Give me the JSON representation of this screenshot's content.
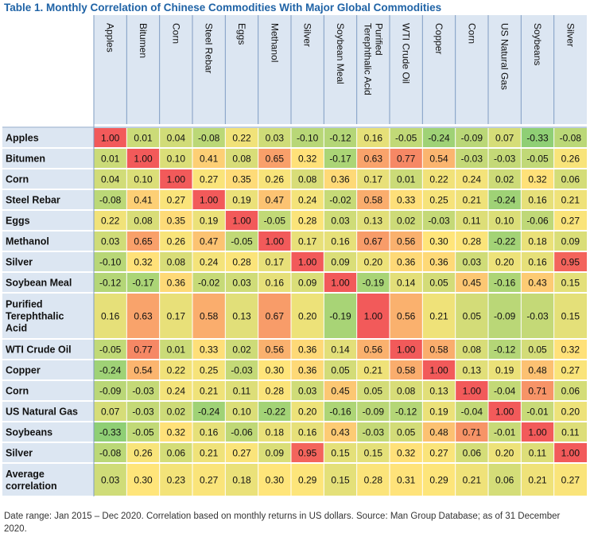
{
  "title": "Table 1. Monthly Correlation of Chinese Commodities With Major Global Commodities",
  "footnote": "Date range: Jan 2015 – Dec 2020. Correlation based on monthly returns in US dollars. Source: Man Group Database; as of 31 December 2020.",
  "colors": {
    "header_fill": "#dce6f2",
    "header_border": "#7f9cc3",
    "scale_low": "#8fcf75",
    "scale_mid": "#ffe57a",
    "scale_high": "#f25a5a"
  },
  "chart_data": {
    "type": "heatmap",
    "columns": [
      "Apples",
      "Bitumen",
      "Corn",
      "Steel Rebar",
      "Eggs",
      "Methanol",
      "Silver",
      "Soybean Meal",
      "Purified Terephthalic Acid",
      "WTI Crude Oil",
      "Copper",
      "Corn",
      "US Natural Gas",
      "Soybeans",
      "Silver"
    ],
    "rows": [
      "Apples",
      "Bitumen",
      "Corn",
      "Steel Rebar",
      "Eggs",
      "Methanol",
      "Silver",
      "Soybean Meal",
      "Purified Terephthalic Acid",
      "WTI Crude Oil",
      "Copper",
      "Corn",
      "US Natural Gas",
      "Soybeans",
      "Silver",
      "Average correlation"
    ],
    "values": [
      [
        "1.00",
        "0.01",
        "0.04",
        "-0.08",
        "0.22",
        "0.03",
        "-0.10",
        "-0.12",
        "0.16",
        "-0.05",
        "-0.24",
        "-0.09",
        "0.07",
        "-0.33",
        "-0.08"
      ],
      [
        "0.01",
        "1.00",
        "0.10",
        "0.41",
        "0.08",
        "0.65",
        "0.32",
        "-0.17",
        "0.63",
        "0.77",
        "0.54",
        "-0.03",
        "-0.03",
        "-0.05",
        "0.26"
      ],
      [
        "0.04",
        "0.10",
        "1.00",
        "0.27",
        "0.35",
        "0.26",
        "0.08",
        "0.36",
        "0.17",
        "0.01",
        "0.22",
        "0.24",
        "0.02",
        "0.32",
        "0.06"
      ],
      [
        "-0.08",
        "0.41",
        "0.27",
        "1.00",
        "0.19",
        "0.47",
        "0.24",
        "-0.02",
        "0.58",
        "0.33",
        "0.25",
        "0.21",
        "-0.24",
        "0.16",
        "0.21"
      ],
      [
        "0.22",
        "0.08",
        "0.35",
        "0.19",
        "1.00",
        "-0.05",
        "0.28",
        "0.03",
        "0.13",
        "0.02",
        "-0.03",
        "0.11",
        "0.10",
        "-0.06",
        "0.27"
      ],
      [
        "0.03",
        "0.65",
        "0.26",
        "0.47",
        "-0.05",
        "1.00",
        "0.17",
        "0.16",
        "0.67",
        "0.56",
        "0.30",
        "0.28",
        "-0.22",
        "0.18",
        "0.09"
      ],
      [
        "-0.10",
        "0.32",
        "0.08",
        "0.24",
        "0.28",
        "0.17",
        "1.00",
        "0.09",
        "0.20",
        "0.36",
        "0.36",
        "0.03",
        "0.20",
        "0.16",
        "0.95"
      ],
      [
        "-0.12",
        "-0.17",
        "0.36",
        "-0.02",
        "0.03",
        "0.16",
        "0.09",
        "1.00",
        "-0.19",
        "0.14",
        "0.05",
        "0.45",
        "-0.16",
        "0.43",
        "0.15"
      ],
      [
        "0.16",
        "0.63",
        "0.17",
        "0.58",
        "0.13",
        "0.67",
        "0.20",
        "-0.19",
        "1.00",
        "0.56",
        "0.21",
        "0.05",
        "-0.09",
        "-0.03",
        "0.15"
      ],
      [
        "-0.05",
        "0.77",
        "0.01",
        "0.33",
        "0.02",
        "0.56",
        "0.36",
        "0.14",
        "0.56",
        "1.00",
        "0.58",
        "0.08",
        "-0.12",
        "0.05",
        "0.32"
      ],
      [
        "-0.24",
        "0.54",
        "0.22",
        "0.25",
        "-0.03",
        "0.30",
        "0.36",
        "0.05",
        "0.21",
        "0.58",
        "1.00",
        "0.13",
        "0.19",
        "0.48",
        "0.27"
      ],
      [
        "-0.09",
        "-0.03",
        "0.24",
        "0.21",
        "0.11",
        "0.28",
        "0.03",
        "0.45",
        "0.05",
        "0.08",
        "0.13",
        "1.00",
        "-0.04",
        "0.71",
        "0.06"
      ],
      [
        "0.07",
        "-0.03",
        "0.02",
        "-0.24",
        "0.10",
        "-0.22",
        "0.20",
        "-0.16",
        "-0.09",
        "-0.12",
        "0.19",
        "-0.04",
        "1.00",
        "-0.01",
        "0.20"
      ],
      [
        "-0.33",
        "-0.05",
        "0.32",
        "0.16",
        "-0.06",
        "0.18",
        "0.16",
        "0.43",
        "-0.03",
        "0.05",
        "0.48",
        "0.71",
        "-0.01",
        "1.00",
        "0.11"
      ],
      [
        "-0.08",
        "0.26",
        "0.06",
        "0.21",
        "0.27",
        "0.09",
        "0.95",
        "0.15",
        "0.15",
        "0.32",
        "0.27",
        "0.06",
        "0.20",
        "0.11",
        "1.00"
      ],
      [
        "0.03",
        "0.30",
        "0.23",
        "0.27",
        "0.18",
        "0.30",
        "0.29",
        "0.15",
        "0.28",
        "0.31",
        "0.29",
        "0.21",
        "0.06",
        "0.21",
        "0.27"
      ]
    ],
    "color_scale": {
      "min": -0.33,
      "mid": 0.3,
      "max": 1.0
    }
  }
}
